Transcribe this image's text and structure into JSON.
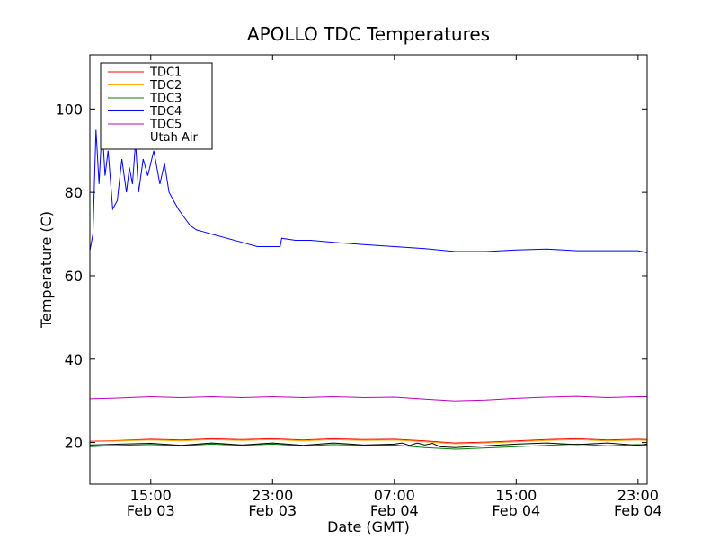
{
  "chart_data": {
    "type": "line",
    "title": "APOLLO TDC Temperatures",
    "xlabel": "Date (GMT)",
    "ylabel": "Temperature (C)",
    "x_unit": "hours from Feb 03 11:00 GMT",
    "xlim": [
      0,
      36.6
    ],
    "ylim": [
      10,
      113
    ],
    "yticks": [
      20,
      40,
      60,
      80,
      100
    ],
    "xticks": [
      {
        "x": 4,
        "line1": "15:00",
        "line2": "Feb 03"
      },
      {
        "x": 12,
        "line1": "23:00",
        "line2": "Feb 03"
      },
      {
        "x": 20,
        "line1": "07:00",
        "line2": "Feb 04"
      },
      {
        "x": 28,
        "line1": "15:00",
        "line2": "Feb 04"
      },
      {
        "x": 36,
        "line1": "23:00",
        "line2": "Feb 04"
      }
    ],
    "grid": false,
    "legend_position": "top-left",
    "series": [
      {
        "name": "TDC1",
        "color": "#ff0000",
        "x": [
          0,
          2,
          4,
          6,
          8,
          10,
          12,
          14,
          16,
          18,
          20,
          22,
          24,
          26,
          28,
          30,
          32,
          34,
          36,
          36.6
        ],
        "y": [
          20.3,
          20.5,
          20.8,
          20.6,
          20.9,
          20.7,
          20.9,
          20.6,
          20.9,
          20.7,
          20.8,
          20.4,
          19.9,
          20.1,
          20.4,
          20.7,
          20.9,
          20.6,
          20.8,
          20.7
        ]
      },
      {
        "name": "TDC2",
        "color": "#ffa500",
        "x": [
          0,
          2,
          4,
          6,
          8,
          10,
          12,
          14,
          16,
          18,
          20,
          22,
          24,
          26,
          28,
          30,
          32,
          34,
          36,
          36.6
        ],
        "y": [
          20.2,
          20.4,
          20.6,
          20.4,
          20.7,
          20.5,
          20.7,
          20.4,
          20.7,
          20.5,
          20.6,
          20.2,
          19.7,
          19.9,
          20.2,
          20.5,
          20.7,
          20.4,
          20.6,
          20.5
        ]
      },
      {
        "name": "TDC3",
        "color": "#008000",
        "x": [
          0,
          2,
          4,
          6,
          8,
          10,
          12,
          14,
          16,
          18,
          20,
          22,
          24,
          26,
          28,
          30,
          32,
          34,
          36,
          36.6
        ],
        "y": [
          19.0,
          19.3,
          19.5,
          19.2,
          19.6,
          19.3,
          19.6,
          19.2,
          19.5,
          19.3,
          19.4,
          18.8,
          18.4,
          18.7,
          19.0,
          19.3,
          19.6,
          19.2,
          19.5,
          19.3
        ]
      },
      {
        "name": "TDC4",
        "color": "#0000ff",
        "x": [
          0,
          0.2,
          0.4,
          0.6,
          0.8,
          1.0,
          1.2,
          1.5,
          1.8,
          2.1,
          2.4,
          2.6,
          2.8,
          3.0,
          3.2,
          3.5,
          3.8,
          4.2,
          4.6,
          4.9,
          5.2,
          5.5,
          5.8,
          6.2,
          6.6,
          7.0,
          7.5,
          8.0,
          9.0,
          10.0,
          10.5,
          11.0,
          12.0,
          12.5,
          12.6,
          13.5,
          14.5,
          16.0,
          18.0,
          20.0,
          22.0,
          24.0,
          26.0,
          28.0,
          30.0,
          32.0,
          34.0,
          36.0,
          36.6
        ],
        "y": [
          66,
          70,
          95,
          82,
          96,
          84,
          90,
          76,
          78,
          88,
          80,
          86,
          82,
          92,
          80,
          88,
          84,
          90,
          82,
          87,
          80,
          78,
          76,
          74,
          72,
          71,
          70.5,
          70,
          69,
          68,
          67.5,
          67,
          67,
          67,
          69,
          68.5,
          68.5,
          68,
          67.5,
          67,
          66.5,
          65.8,
          65.8,
          66.2,
          66.4,
          66,
          66,
          66,
          65.5
        ]
      },
      {
        "name": "TDC5",
        "color": "#bf00bf",
        "x": [
          0,
          2,
          4,
          6,
          8,
          10,
          12,
          14,
          16,
          18,
          20,
          22,
          24,
          26,
          28,
          30,
          32,
          34,
          36,
          36.6
        ],
        "y": [
          30.5,
          30.7,
          31.0,
          30.8,
          31.0,
          30.8,
          31.0,
          30.8,
          31.0,
          30.8,
          30.9,
          30.4,
          30.0,
          30.2,
          30.6,
          30.9,
          31.1,
          30.8,
          31.0,
          31.0
        ]
      },
      {
        "name": "Utah Air",
        "color": "#000000",
        "x": [
          0,
          2,
          4,
          6,
          8,
          10,
          12,
          14,
          16,
          18,
          20,
          20.5,
          21,
          21.5,
          22,
          22.5,
          23,
          24,
          26,
          28,
          30,
          32,
          34,
          36,
          36.6
        ],
        "y": [
          19.4,
          19.6,
          19.8,
          19.3,
          19.9,
          19.4,
          19.9,
          19.3,
          19.9,
          19.4,
          19.6,
          19.9,
          19.3,
          19.9,
          19.4,
          19.8,
          19.0,
          18.8,
          19.2,
          19.6,
          19.9,
          19.5,
          19.9,
          19.3,
          19.6
        ]
      }
    ]
  }
}
